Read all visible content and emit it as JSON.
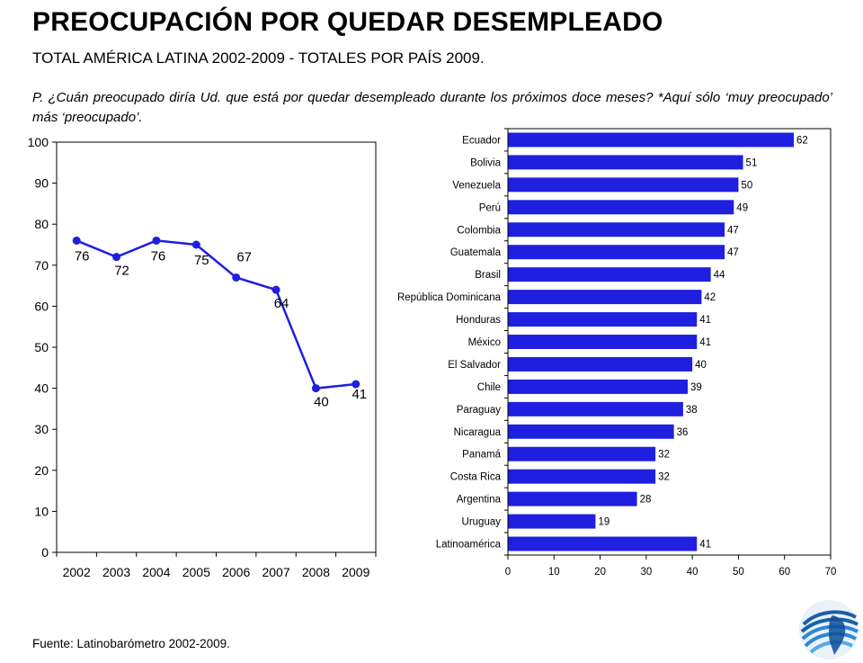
{
  "header": {
    "title": "PREOCUPACIÓN POR QUEDAR DESEMPLEADO",
    "subtitle": "TOTAL AMÉRICA LATINA 2002-2009 - TOTALES POR PAÍS 2009.",
    "question": "P. ¿Cuán preocupado diría Ud. que está por quedar desempleado durante los próximos doce meses? *Aquí sólo ‘muy preocupado’ más ‘preocupado’."
  },
  "footer": {
    "source": "Fuente: Latinobarómetro 2002-2009."
  },
  "colors": {
    "series": "#1f1fe0",
    "grid": "#000000"
  },
  "logo": {
    "icon": "latinobarometro-logo-icon"
  },
  "chart_data": [
    {
      "type": "line",
      "x": [
        "2002",
        "2003",
        "2004",
        "2005",
        "2006",
        "2007",
        "2008",
        "2009"
      ],
      "values": [
        76,
        72,
        76,
        75,
        67,
        64,
        40,
        41
      ],
      "ylim": [
        0,
        100
      ],
      "yticks": [
        0,
        10,
        20,
        30,
        40,
        50,
        60,
        70,
        80,
        90,
        100
      ],
      "grid": false,
      "legend": "none"
    },
    {
      "type": "bar",
      "orientation": "horizontal",
      "categories": [
        "Ecuador",
        "Bolivia",
        "Venezuela",
        "Perú",
        "Colombia",
        "Guatemala",
        "Brasil",
        "República Dominicana",
        "Honduras",
        "México",
        "El Salvador",
        "Chile",
        "Paraguay",
        "Nicaragua",
        "Panamá",
        "Costa Rica",
        "Argentina",
        "Uruguay",
        "Latinoamérica"
      ],
      "values": [
        62,
        51,
        50,
        49,
        47,
        47,
        44,
        42,
        41,
        41,
        40,
        39,
        38,
        36,
        32,
        32,
        28,
        19,
        41
      ],
      "xlim": [
        0,
        70
      ],
      "xticks": [
        0,
        10,
        20,
        30,
        40,
        50,
        60,
        70
      ],
      "grid": false,
      "legend": "none"
    }
  ]
}
